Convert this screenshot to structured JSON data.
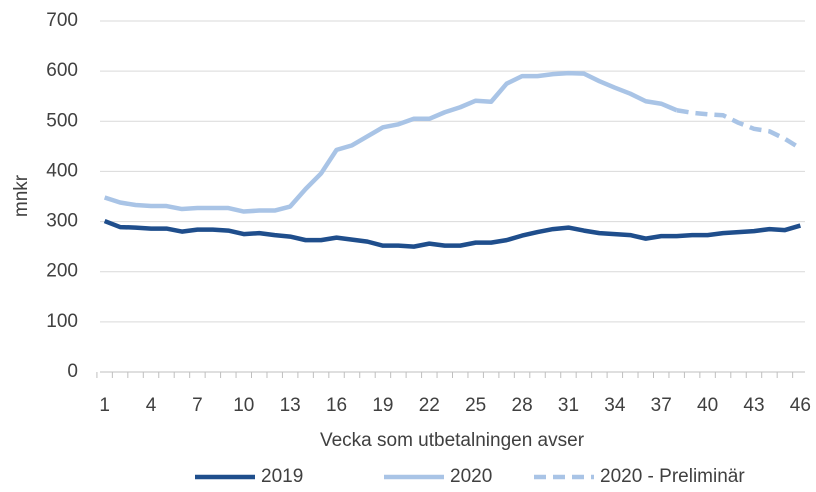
{
  "chart_data": {
    "type": "line",
    "x_label": "Vecka som utbetalningen avser",
    "y_label": "mnkr",
    "x": [
      1,
      2,
      3,
      4,
      5,
      6,
      7,
      8,
      9,
      10,
      11,
      12,
      13,
      14,
      15,
      16,
      17,
      18,
      19,
      20,
      21,
      22,
      23,
      24,
      25,
      26,
      27,
      28,
      29,
      30,
      31,
      32,
      33,
      34,
      35,
      36,
      37,
      38,
      39,
      40,
      41,
      42,
      43,
      44,
      45,
      46
    ],
    "xlim": [
      0.7,
      46.3
    ],
    "xticks": [
      1,
      4,
      7,
      10,
      13,
      16,
      19,
      22,
      25,
      28,
      31,
      34,
      37,
      40,
      43,
      46
    ],
    "ylim": [
      0,
      700
    ],
    "yticks": [
      0,
      100,
      200,
      300,
      400,
      500,
      600,
      700
    ],
    "grid": true,
    "legend": "bottom",
    "series": [
      {
        "name": "2019",
        "color": "#1f4e8c",
        "dash": false,
        "values": [
          301,
          289,
          288,
          286,
          286,
          280,
          284,
          284,
          282,
          275,
          277,
          273,
          270,
          263,
          263,
          268,
          264,
          260,
          252,
          252,
          250,
          256,
          252,
          252,
          258,
          258,
          263,
          272,
          279,
          285,
          288,
          282,
          277,
          275,
          273,
          266,
          271,
          271,
          273,
          273,
          277,
          279,
          281,
          285,
          283,
          292
        ]
      },
      {
        "name": "2020",
        "color": "#a9c4e6",
        "dash": false,
        "values": [
          348,
          338,
          333,
          331,
          331,
          325,
          327,
          327,
          327,
          320,
          322,
          322,
          330,
          365,
          396,
          443,
          452,
          470,
          488,
          494,
          505,
          505,
          518,
          528,
          541,
          539,
          575,
          590,
          590,
          594,
          596,
          595,
          580,
          567,
          555,
          540,
          535,
          522,
          null,
          null,
          null,
          null,
          null,
          null,
          null,
          null
        ]
      },
      {
        "name": "2020 - Preliminär",
        "color": "#a9c4e6",
        "dash": true,
        "values": [
          null,
          null,
          null,
          null,
          null,
          null,
          null,
          null,
          null,
          null,
          null,
          null,
          null,
          null,
          null,
          null,
          null,
          null,
          null,
          null,
          null,
          null,
          null,
          null,
          null,
          null,
          null,
          null,
          null,
          null,
          null,
          null,
          null,
          null,
          null,
          null,
          null,
          522,
          517,
          514,
          512,
          497,
          485,
          480,
          465,
          446
        ]
      }
    ]
  }
}
